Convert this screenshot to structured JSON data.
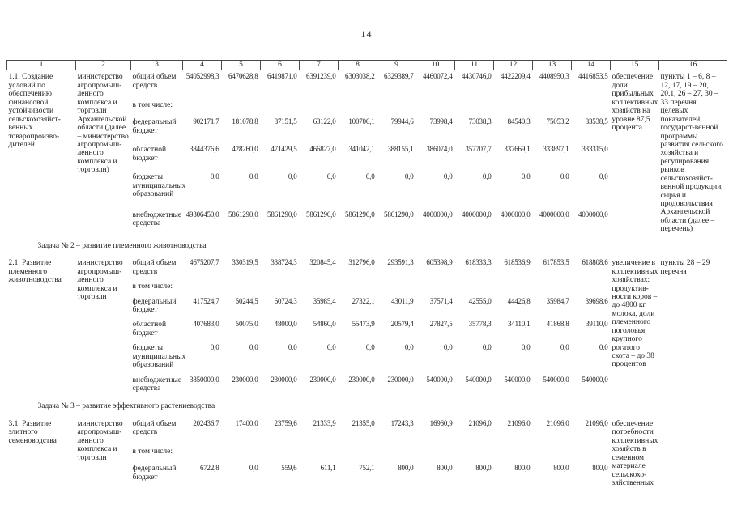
{
  "page": {
    "number": "14"
  },
  "table": {
    "column_numbers": [
      "1",
      "2",
      "3",
      "4",
      "5",
      "6",
      "7",
      "8",
      "9",
      "10",
      "11",
      "12",
      "13",
      "14",
      "15",
      "16"
    ],
    "sections": [
      {
        "type": "row",
        "item": "1.1. Создание условий по обеспечению финансовой устойчивости сельскохозяйст-венных товаропроизво-дителей",
        "executor": "министерство агропромыш-ленного комплекса и торговли Архангельской области (далее – министерство агропромыш-ленного комплекса и торговли)",
        "finance_lines": [
          {
            "label": "общий объем средств",
            "values": [
              "54052998,3",
              "6470628,8",
              "6419871,0",
              "6391239,0",
              "6303038,2",
              "6329389,7",
              "4460072,4",
              "4430746,0",
              "4422209,4",
              "4408950,3",
              "4416853,5"
            ]
          },
          {
            "label": "в том числе:",
            "values": []
          },
          {
            "label": "федеральный бюджет",
            "values": [
              "902171,7",
              "181078,8",
              "87151,5",
              "63122,0",
              "100706,1",
              "79944,6",
              "73998,4",
              "73038,3",
              "84540,3",
              "75053,2",
              "83538,5"
            ]
          },
          {
            "label": "областной бюджет",
            "values": [
              "3844376,6",
              "428260,0",
              "471429,5",
              "466827,0",
              "341042,1",
              "388155,1",
              "386074,0",
              "357707,7",
              "337669,1",
              "333897,1",
              "333315,0"
            ]
          },
          {
            "label": "бюджеты муниципальных образований",
            "values": [
              "0,0",
              "0,0",
              "0,0",
              "0,0",
              "0,0",
              "0,0",
              "0,0",
              "0,0",
              "0,0",
              "0,0",
              "0,0"
            ]
          },
          {
            "label": "внебюджетные средства",
            "values": [
              "49306450,0",
              "5861290,0",
              "5861290,0",
              "5861290,0",
              "5861290,0",
              "5861290,0",
              "4000000,0",
              "4000000,0",
              "4000000,0",
              "4000000,0",
              "4000000,0"
            ]
          }
        ],
        "result": "обеспечение доли прибыльных коллективных хозяйств на уровне 87,5 процента",
        "reference": "пункты 1 – 6, 8 – 12, 17, 19 – 20, 20.1, 26 – 27, 30 – 33 перечня целевых показателей государст-венной программы развития сельского хозяйства и регулирования рынков сельскохозяйст-венной продукции, сырья и продовольствия Архангельской области (далее – перечень)"
      },
      {
        "type": "subheader",
        "text": "Задача № 2 – развитие племенного животноводства"
      },
      {
        "type": "row",
        "item": "2.1. Развитие племенного животноводства",
        "executor": "министерство агропромыш-ленного комплекса и торговли",
        "finance_lines": [
          {
            "label": "общий объем средств",
            "values": [
              "4675207,7",
              "330319,5",
              "338724,3",
              "320845,4",
              "312796,0",
              "293591,3",
              "605398,9",
              "618333,3",
              "618536,9",
              "617853,5",
              "618808,6"
            ]
          },
          {
            "label": "в том числе:",
            "values": []
          },
          {
            "label": "федеральный бюджет",
            "values": [
              "417524,7",
              "50244,5",
              "60724,3",
              "35985,4",
              "27322,1",
              "43011,9",
              "37571,4",
              "42555,0",
              "44426,8",
              "35984,7",
              "39698,6"
            ]
          },
          {
            "label": "областной бюджет",
            "values": [
              "407683,0",
              "50075,0",
              "48000,0",
              "54860,0",
              "55473,9",
              "20579,4",
              "27827,5",
              "35778,3",
              "34110,1",
              "41868,8",
              "39110,0"
            ]
          },
          {
            "label": "бюджеты муниципальных образований",
            "values": [
              "0,0",
              "0,0",
              "0,0",
              "0,0",
              "0,0",
              "0,0",
              "0,0",
              "0,0",
              "0,0",
              "0,0",
              "0,0"
            ]
          },
          {
            "label": "внебюджетные средства",
            "values": [
              "3850000,0",
              "230000,0",
              "230000,0",
              "230000,0",
              "230000,0",
              "230000,0",
              "540000,0",
              "540000,0",
              "540000,0",
              "540000,0",
              "540000,0"
            ]
          }
        ],
        "result": "увеличение в коллективных хозяйствах: продуктив-ности коров – до 4800 кг молока, доли племенного поголовья крупного рогатого скота – до 38 процентов",
        "reference": "пункты 28 – 29 перечня"
      },
      {
        "type": "subheader",
        "text": "Задача № 3 – развитие эффективного растениеводства"
      },
      {
        "type": "row",
        "item": "3.1. Развитие элитного семеноводства",
        "executor": "министерство агропромыш-ленного комплекса и торговли",
        "finance_lines": [
          {
            "label": "общий объем средств",
            "values": [
              "202436,7",
              "17400,0",
              "23759,6",
              "21333,9",
              "21355,0",
              "17243,3",
              "16960,9",
              "21096,0",
              "21096,0",
              "21096,0",
              "21096,0"
            ]
          },
          {
            "label": "в том числе:",
            "values": []
          },
          {
            "label": "федеральный бюджет",
            "values": [
              "6722,8",
              "0,0",
              "559,6",
              "611,1",
              "752,1",
              "800,0",
              "800,0",
              "800,0",
              "800,0",
              "800,0",
              "800,0"
            ]
          }
        ],
        "result": "обеспечение потребности коллективных хозяйств в семенном материале сельскохо-зяйственных",
        "reference": ""
      }
    ]
  }
}
